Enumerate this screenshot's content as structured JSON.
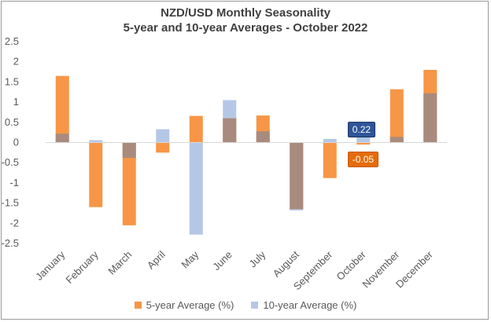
{
  "chart_data": {
    "type": "bar",
    "title": "NZD/USD Monthly Seasonality",
    "subtitle": "5-year and 10-year Averages - October 2022",
    "categories": [
      "January",
      "February",
      "March",
      "April",
      "May",
      "June",
      "July",
      "August",
      "September",
      "October",
      "November",
      "December"
    ],
    "series": [
      {
        "name": "5-year Average (%)",
        "color": "#F79646",
        "values": [
          1.65,
          -1.6,
          -2.05,
          -0.25,
          0.66,
          0.6,
          0.67,
          -1.65,
          -0.88,
          -0.05,
          1.32,
          1.8
        ]
      },
      {
        "name": "10-year Average (%)",
        "color": "#B4C7E7",
        "values": [
          0.22,
          0.06,
          -0.38,
          0.33,
          -2.28,
          1.05,
          0.28,
          -1.68,
          0.09,
          0.22,
          0.14,
          1.22
        ]
      }
    ],
    "overlap_color": "#A98B7E",
    "ylim": [
      -2.5,
      2.5
    ],
    "yticks": [
      "2.5",
      "2",
      "1.5",
      "1",
      "0.5",
      "0",
      "-0.5",
      "-1",
      "-1.5",
      "-2",
      "-2.5"
    ],
    "grid": false,
    "legend": "bottom",
    "annotations": [
      {
        "text": "0.22",
        "category": "October",
        "value": 0.22,
        "color": "#2E5597"
      },
      {
        "text": "-0.05",
        "category": "October",
        "value": -0.05,
        "color": "#E46C0A"
      }
    ]
  }
}
